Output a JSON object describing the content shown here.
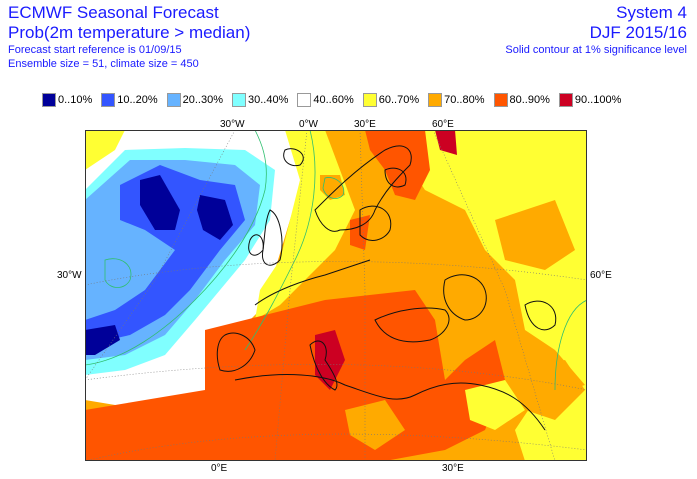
{
  "header": {
    "title": "ECMWF Seasonal Forecast",
    "subtitle": "Prob(2m temperature > median)",
    "forecast_start": "Forecast start reference is 01/09/15",
    "ensemble": "Ensemble size = 51, climate size = 450",
    "system": "System 4",
    "season": "DJF 2015/16",
    "significance_note": "Solid contour at 1% significance level"
  },
  "legend": [
    {
      "label": "0..10%",
      "color": "#000099"
    },
    {
      "label": "10..20%",
      "color": "#3355ff"
    },
    {
      "label": "20..30%",
      "color": "#66b3ff"
    },
    {
      "label": "30..40%",
      "color": "#80ffff"
    },
    {
      "label": "40..60%",
      "color": "#ffffff"
    },
    {
      "label": "60..70%",
      "color": "#ffff33"
    },
    {
      "label": "70..80%",
      "color": "#ffaa00"
    },
    {
      "label": "80..90%",
      "color": "#ff5500"
    },
    {
      "label": "90..100%",
      "color": "#cc0022"
    }
  ],
  "axes": {
    "top": [
      "30°W",
      "0°W",
      "30°E",
      "60°E"
    ],
    "left": "30°W",
    "right": "60°E",
    "bottom": [
      "0°E",
      "30°E"
    ]
  }
}
